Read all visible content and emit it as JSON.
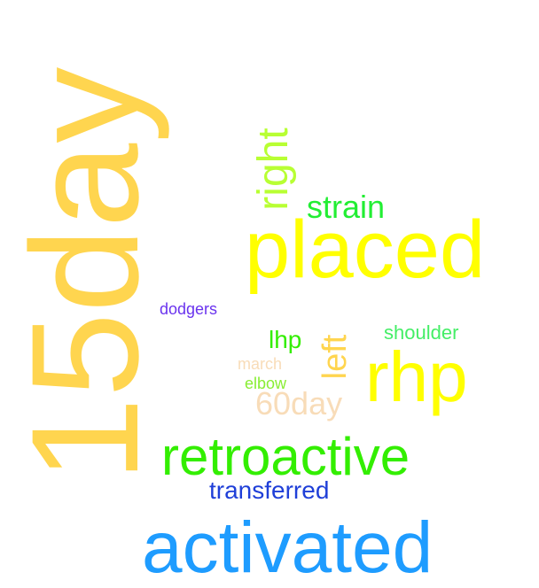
{
  "word_cloud": {
    "words": [
      {
        "text": "15day",
        "color": "#ffd54f",
        "orientation": "vertical"
      },
      {
        "text": "placed",
        "color": "#ffff00",
        "orientation": "horizontal"
      },
      {
        "text": "activated",
        "color": "#1e9cff",
        "orientation": "horizontal"
      },
      {
        "text": "rhp",
        "color": "#ffff00",
        "orientation": "horizontal"
      },
      {
        "text": "retroactive",
        "color": "#33ee00",
        "orientation": "horizontal"
      },
      {
        "text": "right",
        "color": "#b8ff33",
        "orientation": "vertical"
      },
      {
        "text": "strain",
        "color": "#22ee33",
        "orientation": "horizontal"
      },
      {
        "text": "left",
        "color": "#ffd54f",
        "orientation": "vertical"
      },
      {
        "text": "60day",
        "color": "#f8dcb8",
        "orientation": "horizontal"
      },
      {
        "text": "transferred",
        "color": "#1f3fd8",
        "orientation": "horizontal"
      },
      {
        "text": "lhp",
        "color": "#33ee00",
        "orientation": "horizontal"
      },
      {
        "text": "shoulder",
        "color": "#44ee66",
        "orientation": "horizontal"
      },
      {
        "text": "dodgers",
        "color": "#6a33ee",
        "orientation": "horizontal"
      },
      {
        "text": "march",
        "color": "#f8dcb8",
        "orientation": "horizontal"
      },
      {
        "text": "elbow",
        "color": "#88ee33",
        "orientation": "horizontal"
      }
    ]
  }
}
